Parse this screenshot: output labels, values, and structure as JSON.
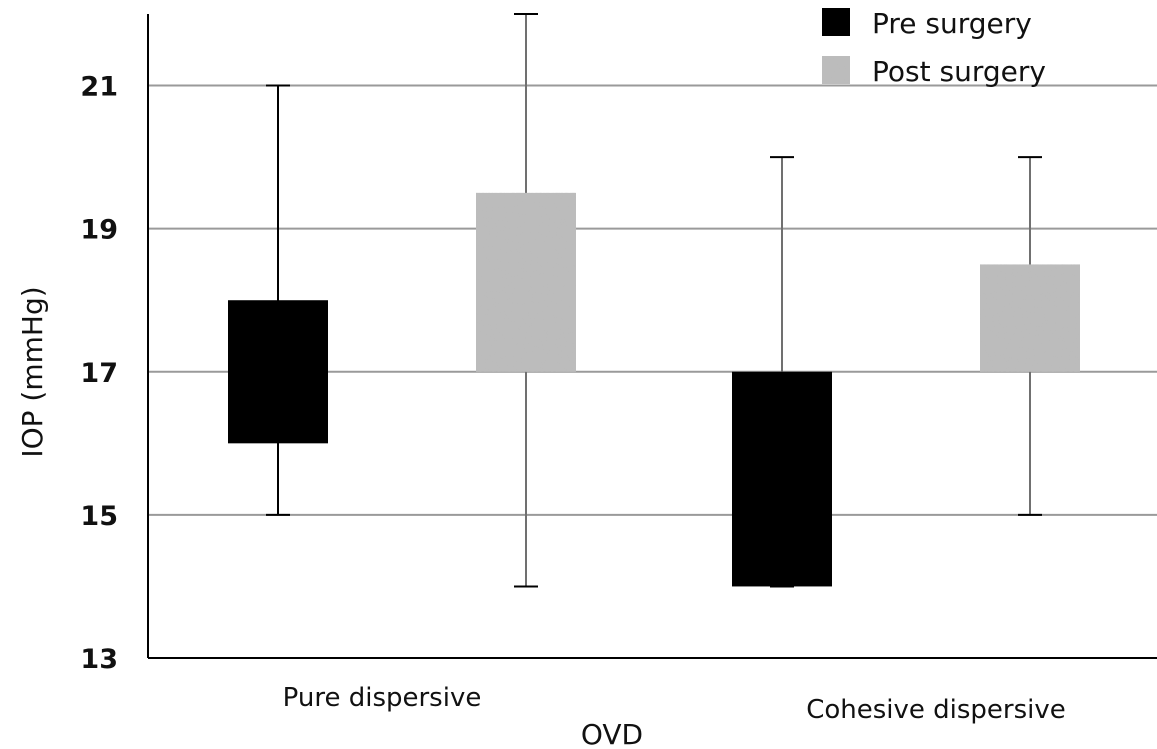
{
  "chart_data": {
    "type": "boxplot",
    "xlabel": "OVD",
    "ylabel": "IOP (mmHg)",
    "ylim": [
      13,
      22
    ],
    "yticks": [
      13,
      15,
      17,
      19,
      21
    ],
    "grid": true,
    "legend_position": "top-right",
    "categories": [
      "Pure dispersive",
      "Cohesive dispersive"
    ],
    "series": [
      {
        "name": "Pre surgery",
        "color": "#000000",
        "fill": "solid",
        "boxes": [
          {
            "category": "Pure dispersive",
            "min": 15,
            "q1": 16,
            "q3": 18,
            "max": 21
          },
          {
            "category": "Cohesive dispersive",
            "min": 14,
            "q1": 14,
            "q3": 17,
            "max": 20
          }
        ]
      },
      {
        "name": "Post surgery",
        "color": "#9a9a9a",
        "fill": "granite-texture",
        "boxes": [
          {
            "category": "Pure dispersive",
            "min": 14,
            "q1": 17,
            "q3": 19.5,
            "max": 22
          },
          {
            "category": "Cohesive dispersive",
            "min": 15,
            "q1": 17,
            "q3": 18.5,
            "max": 20
          }
        ]
      }
    ]
  }
}
